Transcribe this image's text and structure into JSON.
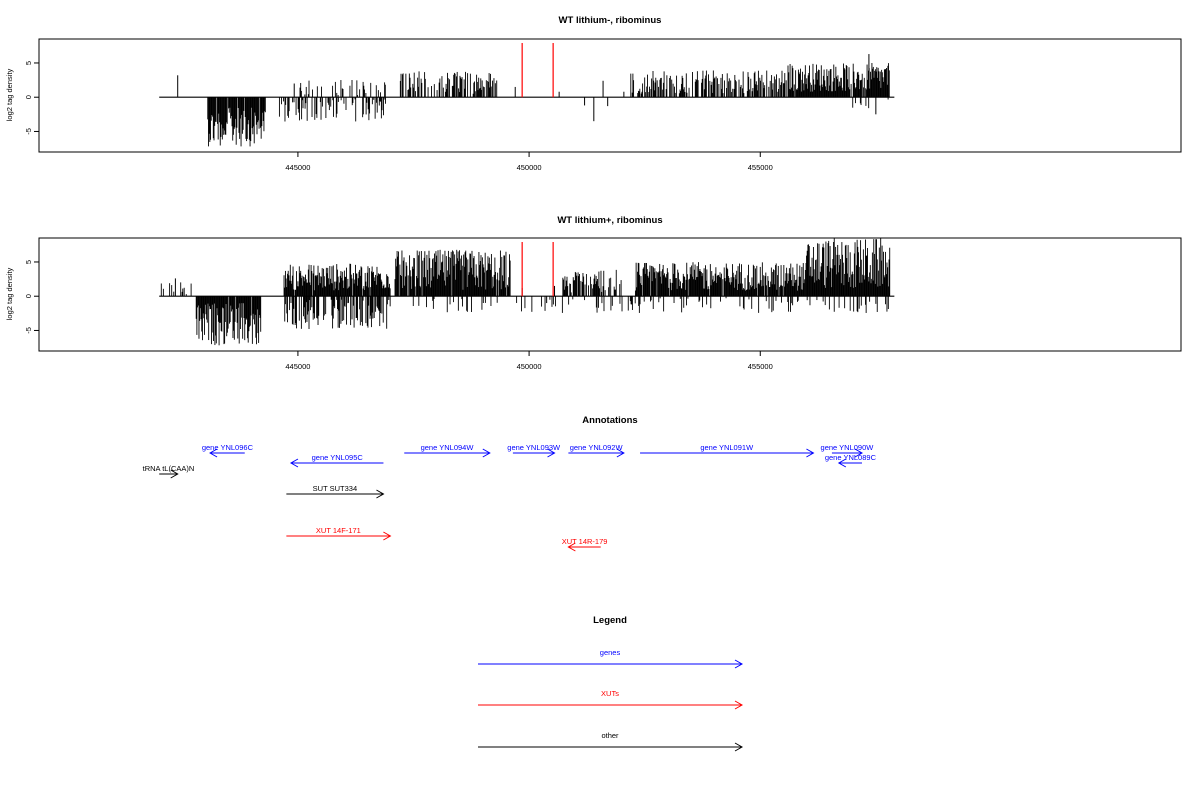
{
  "chart_data": [
    {
      "type": "bar",
      "title": "WT lithium-, ribominus",
      "ylabel": "log2 tag density",
      "xlabel": "",
      "xlim": [
        439400,
        464100
      ],
      "ylim": [
        -8,
        8.5
      ],
      "x_ticks": [
        445000,
        450000,
        455000
      ],
      "x_tick_labels": [
        "445000",
        "450000",
        "455000"
      ],
      "y_ticks": [
        -5,
        0,
        5
      ],
      "y_tick_labels": [
        "-5",
        "0",
        "5"
      ],
      "baseline": {
        "from": 442000,
        "to": 457900
      },
      "markers": [
        449850,
        450520
      ],
      "marker_color": "#ff0000",
      "segments": [
        {
          "from": 443050,
          "to": 444300,
          "sign": -1,
          "min": 1.5,
          "max": 7.2,
          "density": 0.9
        },
        {
          "from": 444600,
          "to": 446900,
          "sign": -1,
          "min": 0.3,
          "max": 3.6,
          "density": 0.45
        },
        {
          "from": 445000,
          "to": 446900,
          "sign": 1,
          "min": 0.3,
          "max": 2.6,
          "density": 0.25
        },
        {
          "from": 447200,
          "to": 449300,
          "sign": 1,
          "min": 0.5,
          "max": 3.8,
          "density": 0.55
        },
        {
          "from": 452200,
          "to": 455600,
          "sign": 1,
          "min": 0.5,
          "max": 4.0,
          "density": 0.6
        },
        {
          "from": 455600,
          "to": 457800,
          "sign": 1,
          "min": 0.8,
          "max": 5.0,
          "density": 0.95
        },
        {
          "from": 457000,
          "to": 457800,
          "sign": -1,
          "min": 0.3,
          "max": 2.2,
          "density": 0.15
        }
      ],
      "spikes": [
        {
          "x": 442400,
          "y": 3.2
        },
        {
          "x": 444920,
          "y": 2.0
        },
        {
          "x": 449700,
          "y": 1.5
        },
        {
          "x": 450650,
          "y": 0.8
        },
        {
          "x": 451200,
          "y": -1.2
        },
        {
          "x": 451400,
          "y": -3.5
        },
        {
          "x": 451600,
          "y": 2.4
        },
        {
          "x": 451700,
          "y": -1.3
        },
        {
          "x": 452050,
          "y": 0.8
        },
        {
          "x": 457500,
          "y": -2.5
        },
        {
          "x": 457350,
          "y": 6.3
        }
      ]
    },
    {
      "type": "bar",
      "title": "WT lithium+, ribominus",
      "ylabel": "log2 tag density",
      "xlabel": "",
      "xlim": [
        439400,
        464100
      ],
      "ylim": [
        -8,
        8.5
      ],
      "x_ticks": [
        445000,
        450000,
        455000
      ],
      "x_tick_labels": [
        "445000",
        "450000",
        "455000"
      ],
      "y_ticks": [
        -5,
        0,
        5
      ],
      "y_tick_labels": [
        "-5",
        "0",
        "5"
      ],
      "baseline": {
        "from": 442000,
        "to": 457900
      },
      "markers": [
        449850,
        450520
      ],
      "marker_color": "#ff0000",
      "segments": [
        {
          "from": 442000,
          "to": 442700,
          "sign": 1,
          "min": 0.3,
          "max": 2.4,
          "density": 0.25
        },
        {
          "from": 442800,
          "to": 444200,
          "sign": -1,
          "min": 1.0,
          "max": 7.2,
          "density": 0.95
        },
        {
          "from": 444700,
          "to": 447000,
          "sign": 1,
          "min": 0.8,
          "max": 4.8,
          "density": 0.95
        },
        {
          "from": 444700,
          "to": 447000,
          "sign": -1,
          "min": 0.5,
          "max": 4.8,
          "density": 0.6
        },
        {
          "from": 447100,
          "to": 449600,
          "sign": 1,
          "min": 0.8,
          "max": 6.8,
          "density": 0.95
        },
        {
          "from": 450700,
          "to": 452000,
          "sign": 1,
          "min": 0.5,
          "max": 4.0,
          "density": 0.7
        },
        {
          "from": 452300,
          "to": 456000,
          "sign": 1,
          "min": 0.8,
          "max": 5.0,
          "density": 0.95
        },
        {
          "from": 456000,
          "to": 457800,
          "sign": 1,
          "min": 1.0,
          "max": 8.5,
          "density": 1.0
        },
        {
          "from": 447300,
          "to": 457800,
          "sign": -1,
          "min": 0.3,
          "max": 2.5,
          "density": 0.15
        }
      ],
      "spikes": [
        {
          "x": 442350,
          "y": 2.6
        },
        {
          "x": 449850,
          "y": 1.2
        },
        {
          "x": 450550,
          "y": 1.5
        },
        {
          "x": 450380,
          "y": -1.0
        }
      ]
    }
  ],
  "annotations": {
    "title": "Annotations",
    "items": [
      {
        "label": "gene YNL096C",
        "direction": "left",
        "from": 443100,
        "to": 443850,
        "row": "gene-a",
        "color": "#0000ff"
      },
      {
        "label": "gene YNL095C",
        "direction": "left",
        "from": 444850,
        "to": 446850,
        "row": "gene-b",
        "color": "#0000ff"
      },
      {
        "label": "gene YNL094W",
        "direction": "right",
        "from": 447300,
        "to": 449150,
        "row": "gene-a",
        "color": "#0000ff"
      },
      {
        "label": "gene YNL093W",
        "direction": "right",
        "from": 449650,
        "to": 450550,
        "row": "gene-a",
        "color": "#0000ff"
      },
      {
        "label": "gene YNL092W",
        "direction": "right",
        "from": 450850,
        "to": 452050,
        "row": "gene-a",
        "color": "#0000ff"
      },
      {
        "label": "gene YNL091W",
        "direction": "right",
        "from": 452400,
        "to": 456150,
        "row": "gene-a",
        "color": "#0000ff"
      },
      {
        "label": "gene YNL090W",
        "direction": "right",
        "from": 456550,
        "to": 457200,
        "row": "gene-a",
        "color": "#0000ff"
      },
      {
        "label": "gene YNL089C",
        "direction": "left",
        "from": 456700,
        "to": 457200,
        "row": "gene-b",
        "color": "#0000ff"
      },
      {
        "label": "tRNA tL(CAA)N",
        "direction": "right",
        "from": 442000,
        "to": 442400,
        "row": "trna",
        "color": "#000000"
      },
      {
        "label": "SUT SUT334",
        "direction": "right",
        "from": 444750,
        "to": 446850,
        "row": "sut",
        "color": "#000000"
      },
      {
        "label": "XUT 14F-171",
        "direction": "right",
        "from": 444750,
        "to": 447000,
        "row": "xut-a",
        "color": "#ff0000"
      },
      {
        "label": "XUT 14R-179",
        "direction": "left",
        "from": 450850,
        "to": 451550,
        "row": "xut-b",
        "color": "#ff0000"
      }
    ]
  },
  "legend": {
    "title": "Legend",
    "entries": [
      {
        "label": "genes",
        "color": "#0000ff"
      },
      {
        "label": "XUTs",
        "color": "#ff0000"
      },
      {
        "label": "other",
        "color": "#000000"
      }
    ]
  }
}
